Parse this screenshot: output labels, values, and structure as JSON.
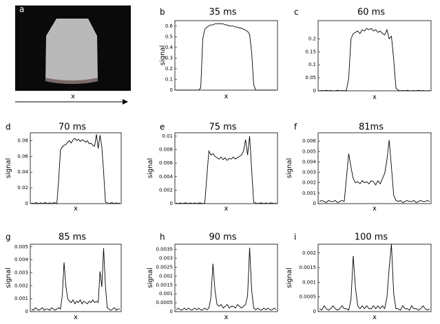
{
  "chart_data": [
    {
      "type": "image",
      "label": "a",
      "xlabel": "x"
    },
    {
      "type": "line",
      "label": "b",
      "title": "35 ms",
      "xlabel": "x",
      "ylabel": "signal",
      "ylim": [
        0,
        0.65
      ],
      "yticks": [
        0,
        0.1,
        0.2,
        0.3,
        0.4,
        0.5,
        0.6
      ],
      "values": [
        0,
        0,
        0,
        0,
        0,
        0,
        0,
        0,
        0,
        0,
        0,
        0,
        0.02,
        0.48,
        0.57,
        0.59,
        0.6,
        0.61,
        0.61,
        0.62,
        0.62,
        0.62,
        0.62,
        0.62,
        0.61,
        0.61,
        0.6,
        0.6,
        0.6,
        0.59,
        0.59,
        0.58,
        0.58,
        0.57,
        0.56,
        0.55,
        0.52,
        0.35,
        0.05,
        0,
        0,
        0,
        0,
        0,
        0,
        0,
        0,
        0,
        0,
        0
      ]
    },
    {
      "type": "line",
      "label": "c",
      "title": "60 ms",
      "xlabel": "x",
      "ylim": [
        0,
        0.27
      ],
      "yticks": [
        0,
        0.05,
        0.1,
        0.15,
        0.2
      ],
      "values": [
        0,
        0.001,
        0,
        0.002,
        0,
        0.001,
        0,
        0,
        0.002,
        0,
        0.001,
        0,
        0.002,
        0.05,
        0.2,
        0.22,
        0.225,
        0.23,
        0.22,
        0.235,
        0.23,
        0.24,
        0.235,
        0.24,
        0.23,
        0.235,
        0.225,
        0.23,
        0.22,
        0.215,
        0.235,
        0.2,
        0.21,
        0.12,
        0.01,
        0.002,
        0,
        0.001,
        0,
        0.002,
        0,
        0,
        0.001,
        0,
        0.002,
        0,
        0.001,
        0,
        0,
        0.001
      ]
    },
    {
      "type": "line",
      "label": "d",
      "title": "70 ms",
      "xlabel": "x",
      "ylabel": "signal",
      "ylim": [
        0,
        0.09
      ],
      "yticks": [
        0,
        0.02,
        0.04,
        0.06,
        0.08
      ],
      "values": [
        0.001,
        0,
        0.001,
        0.001,
        0,
        0.001,
        0,
        0.001,
        0.001,
        0,
        0.001,
        0,
        0.001,
        0.001,
        0,
        0.03,
        0.068,
        0.072,
        0.074,
        0.075,
        0.078,
        0.08,
        0.077,
        0.081,
        0.083,
        0.08,
        0.082,
        0.079,
        0.081,
        0.08,
        0.078,
        0.08,
        0.076,
        0.077,
        0.074,
        0.073,
        0.088,
        0.07,
        0.087,
        0.072,
        0.04,
        0.002,
        0.001,
        0,
        0.001,
        0.001,
        0,
        0.001,
        0,
        0.001
      ]
    },
    {
      "type": "line",
      "label": "e",
      "title": "75 ms",
      "xlabel": "x",
      "ylabel": "signal",
      "ylim": [
        0,
        0.0105
      ],
      "yticks": [
        0,
        0.002,
        0.004,
        0.006,
        0.008,
        0.01
      ],
      "values": [
        0.0001,
        0,
        0.0001,
        0,
        0.0001,
        0.0001,
        0,
        0.0001,
        0,
        0.0001,
        0,
        0.0001,
        0.0001,
        0,
        0.0001,
        0.004,
        0.0078,
        0.0072,
        0.0074,
        0.007,
        0.0068,
        0.0066,
        0.0069,
        0.0065,
        0.0068,
        0.0064,
        0.0067,
        0.0066,
        0.0069,
        0.0066,
        0.0068,
        0.007,
        0.0072,
        0.0078,
        0.0095,
        0.0072,
        0.01,
        0.005,
        0.0002,
        0.0001,
        0,
        0.0001,
        0.0001,
        0,
        0.0001,
        0,
        0.0001,
        0.0001,
        0,
        0.0001
      ]
    },
    {
      "type": "line",
      "label": "f",
      "title": "81ms",
      "xlabel": "x",
      "ylabel": "signal",
      "ylim": [
        0,
        0.0068
      ],
      "yticks": [
        0,
        0.001,
        0.002,
        0.003,
        0.004,
        0.005,
        0.006
      ],
      "values": [
        0.0002,
        0.0003,
        0.0002,
        0.0001,
        0.0003,
        0.0002,
        0.0002,
        0.0003,
        0.0001,
        0.0002,
        0.0003,
        0.0002,
        0.0025,
        0.0048,
        0.0035,
        0.0024,
        0.002,
        0.0021,
        0.0019,
        0.0022,
        0.002,
        0.0021,
        0.0019,
        0.0022,
        0.0021,
        0.0018,
        0.0022,
        0.0019,
        0.0024,
        0.0029,
        0.0042,
        0.0061,
        0.0035,
        0.0008,
        0.0003,
        0.0002,
        0.0003,
        0.0001,
        0.0002,
        0.0003,
        0.0002,
        0.0002,
        0.0003,
        0.0001,
        0.0002,
        0.0003,
        0.0002,
        0.0002,
        0.0003,
        0.0002
      ]
    },
    {
      "type": "line",
      "label": "g",
      "title": "85 ms",
      "xlabel": "x",
      "ylabel": "signal",
      "ylim": [
        0,
        0.0052
      ],
      "yticks": [
        0,
        0.001,
        0.002,
        0.003,
        0.004,
        0.005
      ],
      "values": [
        0.0002,
        0.0001,
        0.0003,
        0.0002,
        0.0001,
        0.0002,
        0.0003,
        0.0001,
        0.0002,
        0.0002,
        0.0001,
        0.0003,
        0.0002,
        0.0001,
        0.0002,
        0.0003,
        0.0002,
        0.0012,
        0.0038,
        0.002,
        0.001,
        0.0008,
        0.0007,
        0.0009,
        0.0006,
        0.0008,
        0.0007,
        0.0009,
        0.0006,
        0.0008,
        0.0007,
        0.0006,
        0.0008,
        0.0007,
        0.0009,
        0.0007,
        0.0008,
        0.0007,
        0.0031,
        0.0019,
        0.0049,
        0.002,
        0.0003,
        0.0002,
        0.0001,
        0.0002,
        0.0003,
        0.0001,
        0.0002,
        0.0002
      ]
    },
    {
      "type": "line",
      "label": "h",
      "title": "90 ms",
      "xlabel": "x",
      "ylabel": "signal",
      "ylim": [
        0,
        0.0038
      ],
      "yticks": [
        0,
        0.0005,
        0.001,
        0.0015,
        0.002,
        0.0025,
        0.003,
        0.0035
      ],
      "values": [
        0.0001,
        0.0002,
        0.0001,
        0.0001,
        0.0002,
        0.0001,
        0.0002,
        0.0001,
        0.0001,
        0.0002,
        0.0001,
        0.0002,
        0.0001,
        0.0001,
        0.0002,
        0.0001,
        0.0002,
        0.0008,
        0.0027,
        0.0012,
        0.0004,
        0.0003,
        0.0004,
        0.0002,
        0.0003,
        0.0004,
        0.0002,
        0.0003,
        0.0003,
        0.0002,
        0.0004,
        0.0003,
        0.0002,
        0.0003,
        0.0004,
        0.0009,
        0.0036,
        0.0012,
        0.0002,
        0.0001,
        0.0002,
        0.0001,
        0.0001,
        0.0002,
        0.0001,
        0.0002,
        0.0001,
        0.0001,
        0.0002,
        0.0001
      ]
    },
    {
      "type": "line",
      "label": "i",
      "title": "100 ms",
      "xlabel": "x",
      "ylabel": "signal",
      "ylim": [
        0,
        0.0023
      ],
      "yticks": [
        0,
        0.0005,
        0.001,
        0.0015,
        0.002
      ],
      "values": [
        0.0001,
        5e-05,
        0.0002,
        0.0001,
        5e-05,
        0.0001,
        0.0002,
        0.0001,
        5e-05,
        0.0001,
        0.0002,
        0.0001,
        0.0001,
        5e-05,
        0.0004,
        0.0019,
        0.0008,
        0.0002,
        0.0001,
        0.0002,
        0.0001,
        0.0002,
        0.0001,
        0.0001,
        0.0002,
        0.0001,
        0.0002,
        0.0001,
        0.0002,
        0.0001,
        0.0005,
        0.0015,
        0.0023,
        0.0006,
        0.0001,
        0.0001,
        5e-05,
        0.0002,
        0.0001,
        0.0001,
        5e-05,
        0.0002,
        0.0001,
        0.0001,
        5e-05,
        0.0001,
        0.0002,
        0.0001,
        5e-05,
        0.0001
      ]
    }
  ]
}
